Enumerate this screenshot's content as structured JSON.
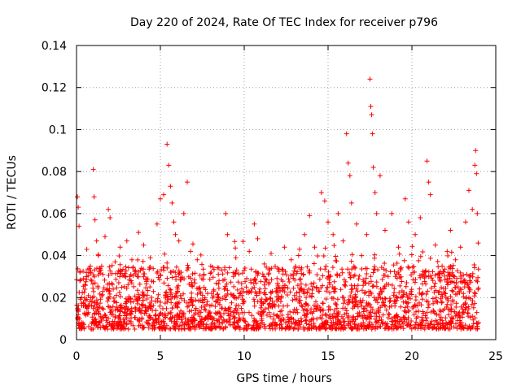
{
  "chart_data": {
    "type": "scatter",
    "title": "Day 220 of 2024, Rate Of TEC Index for receiver p796",
    "xlabel": "GPS time / hours",
    "ylabel": "ROTI / TECUs",
    "xlim": [
      0,
      25
    ],
    "ylim": [
      0,
      0.14
    ],
    "xticks": [
      0,
      5,
      10,
      15,
      20,
      25
    ],
    "xtick_labels": [
      "0",
      "5",
      "10",
      "15",
      "20",
      "25"
    ],
    "yticks": [
      0,
      0.02,
      0.04,
      0.06,
      0.08,
      0.1,
      0.12,
      0.14
    ],
    "ytick_labels": [
      "0",
      "0.02",
      "0.04",
      "0.06",
      "0.08",
      "0.1",
      "0.12",
      "0.14"
    ],
    "grid": true,
    "marker": "plus",
    "color": "#ff0000",
    "series": [
      {
        "name": "ROTI",
        "points": [
          [
            0.05,
            0.068
          ],
          [
            0.1,
            0.063
          ],
          [
            0.15,
            0.054
          ],
          [
            0.2,
            0.028
          ],
          [
            0.3,
            0.02
          ],
          [
            0.5,
            0.024
          ],
          [
            0.8,
            0.018
          ],
          [
            1.0,
            0.081
          ],
          [
            1.05,
            0.068
          ],
          [
            1.1,
            0.057
          ],
          [
            1.2,
            0.047
          ],
          [
            1.3,
            0.04
          ],
          [
            1.5,
            0.035
          ],
          [
            1.7,
            0.049
          ],
          [
            1.9,
            0.062
          ],
          [
            2.0,
            0.058
          ],
          [
            2.3,
            0.037
          ],
          [
            2.6,
            0.044
          ],
          [
            3.0,
            0.047
          ],
          [
            3.3,
            0.038
          ],
          [
            3.7,
            0.051
          ],
          [
            4.0,
            0.045
          ],
          [
            4.4,
            0.039
          ],
          [
            4.8,
            0.055
          ],
          [
            5.0,
            0.067
          ],
          [
            5.2,
            0.069
          ],
          [
            5.4,
            0.093
          ],
          [
            5.5,
            0.083
          ],
          [
            5.6,
            0.073
          ],
          [
            5.7,
            0.065
          ],
          [
            5.8,
            0.056
          ],
          [
            5.9,
            0.05
          ],
          [
            6.1,
            0.047
          ],
          [
            6.4,
            0.06
          ],
          [
            6.6,
            0.075
          ],
          [
            6.8,
            0.042
          ],
          [
            7.2,
            0.038
          ],
          [
            7.6,
            0.031
          ],
          [
            8.0,
            0.035
          ],
          [
            8.5,
            0.028
          ],
          [
            8.9,
            0.06
          ],
          [
            9.0,
            0.05
          ],
          [
            9.5,
            0.039
          ],
          [
            10.0,
            0.033
          ],
          [
            10.3,
            0.042
          ],
          [
            10.6,
            0.055
          ],
          [
            10.8,
            0.048
          ],
          [
            11.2,
            0.036
          ],
          [
            11.6,
            0.041
          ],
          [
            12.0,
            0.034
          ],
          [
            12.4,
            0.044
          ],
          [
            12.8,
            0.038
          ],
          [
            13.3,
            0.043
          ],
          [
            13.6,
            0.05
          ],
          [
            13.9,
            0.059
          ],
          [
            14.2,
            0.044
          ],
          [
            14.6,
            0.07
          ],
          [
            14.8,
            0.066
          ],
          [
            15.0,
            0.056
          ],
          [
            15.3,
            0.05
          ],
          [
            15.6,
            0.06
          ],
          [
            15.9,
            0.047
          ],
          [
            16.1,
            0.098
          ],
          [
            16.2,
            0.084
          ],
          [
            16.3,
            0.078
          ],
          [
            16.4,
            0.065
          ],
          [
            16.7,
            0.055
          ],
          [
            17.0,
            0.04
          ],
          [
            17.3,
            0.05
          ],
          [
            17.5,
            0.124
          ],
          [
            17.55,
            0.111
          ],
          [
            17.6,
            0.107
          ],
          [
            17.65,
            0.098
          ],
          [
            17.7,
            0.082
          ],
          [
            17.8,
            0.07
          ],
          [
            17.9,
            0.06
          ],
          [
            18.1,
            0.078
          ],
          [
            18.4,
            0.052
          ],
          [
            18.8,
            0.06
          ],
          [
            19.2,
            0.044
          ],
          [
            19.6,
            0.067
          ],
          [
            19.8,
            0.056
          ],
          [
            20.2,
            0.05
          ],
          [
            20.5,
            0.058
          ],
          [
            20.9,
            0.085
          ],
          [
            21.0,
            0.075
          ],
          [
            21.1,
            0.069
          ],
          [
            21.4,
            0.045
          ],
          [
            21.8,
            0.035
          ],
          [
            22.1,
            0.042
          ],
          [
            22.3,
            0.052
          ],
          [
            22.6,
            0.038
          ],
          [
            22.9,
            0.044
          ],
          [
            23.2,
            0.056
          ],
          [
            23.4,
            0.071
          ],
          [
            23.6,
            0.062
          ],
          [
            23.75,
            0.083
          ],
          [
            23.8,
            0.09
          ],
          [
            23.85,
            0.079
          ],
          [
            23.9,
            0.06
          ],
          [
            23.95,
            0.046
          ]
        ],
        "dense_band": {
          "x_range": [
            0,
            24
          ],
          "typical_y_range": [
            0.005,
            0.035
          ]
        }
      }
    ]
  }
}
